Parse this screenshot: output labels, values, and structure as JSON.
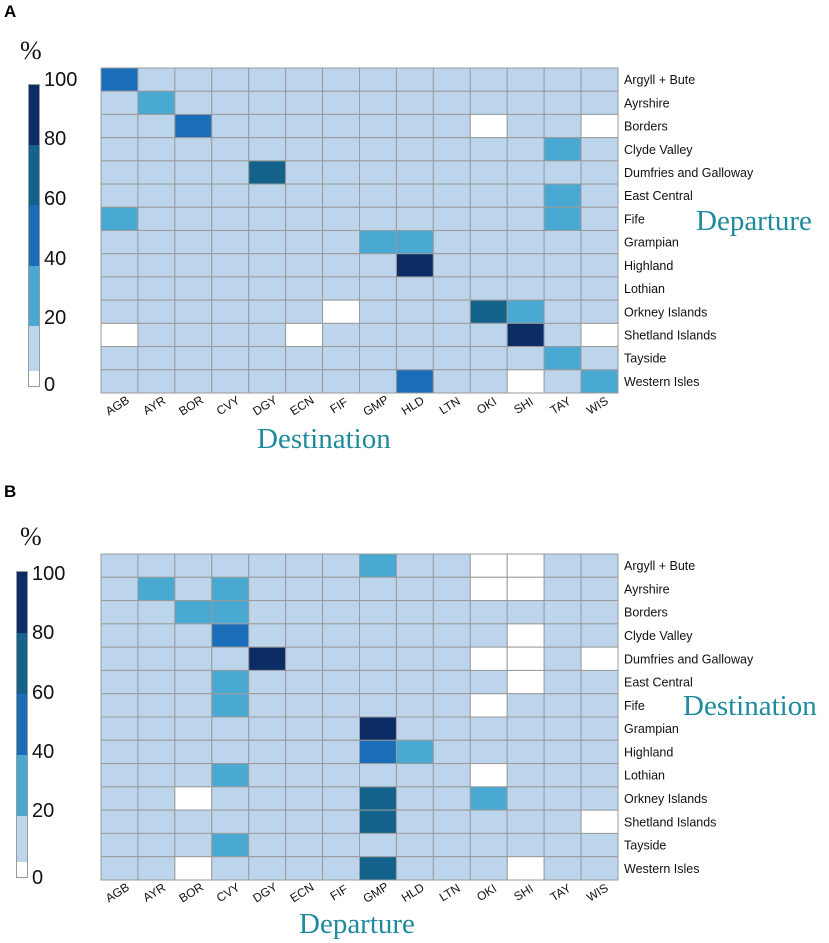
{
  "figure": {
    "panels": [
      "A",
      "B"
    ],
    "colorbar": {
      "unit": "%",
      "ticks": [
        "100",
        "80",
        "60",
        "40",
        "20",
        "0"
      ],
      "colors": [
        "#ffffff",
        "#bcd5ec",
        "#4aa9d2",
        "#1a6db8",
        "#13628c",
        "#0c2c66"
      ]
    }
  },
  "chart_data": [
    {
      "type": "heatmap",
      "panel": "A",
      "title": "",
      "xlabel": "Destination",
      "ylabel": "Departure",
      "x_categories": [
        "AGB",
        "AYR",
        "BOR",
        "CVY",
        "DGY",
        "ECN",
        "FIF",
        "GMP",
        "HLD",
        "LTN",
        "OKI",
        "SHI",
        "TAY",
        "WIS"
      ],
      "y_categories": [
        "Argyll + Bute",
        "Ayrshire",
        "Borders",
        "Clyde Valley",
        "Dumfries and Galloway",
        "East Central",
        "Fife",
        "Grampian",
        "Highland",
        "Lothian",
        "Orkney Islands",
        "Shetland Islands",
        "Tayside",
        "Western Isles"
      ],
      "value_range": [
        0,
        100
      ],
      "values": [
        [
          50,
          10,
          10,
          10,
          10,
          10,
          10,
          10,
          10,
          10,
          10,
          10,
          10,
          10
        ],
        [
          10,
          30,
          10,
          10,
          10,
          10,
          10,
          10,
          10,
          10,
          10,
          10,
          10,
          10
        ],
        [
          10,
          10,
          50,
          10,
          10,
          10,
          10,
          10,
          10,
          10,
          2,
          10,
          10,
          2
        ],
        [
          10,
          10,
          10,
          10,
          10,
          10,
          10,
          10,
          10,
          10,
          10,
          10,
          30,
          10
        ],
        [
          10,
          10,
          10,
          10,
          70,
          10,
          10,
          10,
          10,
          10,
          10,
          10,
          10,
          10
        ],
        [
          10,
          10,
          10,
          10,
          10,
          10,
          10,
          10,
          10,
          10,
          10,
          10,
          30,
          10
        ],
        [
          30,
          10,
          10,
          10,
          10,
          10,
          10,
          10,
          10,
          10,
          10,
          10,
          30,
          10
        ],
        [
          10,
          10,
          10,
          10,
          10,
          10,
          10,
          30,
          30,
          10,
          10,
          10,
          10,
          10
        ],
        [
          10,
          10,
          10,
          10,
          10,
          10,
          10,
          10,
          90,
          10,
          10,
          10,
          10,
          10
        ],
        [
          10,
          10,
          10,
          10,
          10,
          10,
          10,
          10,
          10,
          10,
          10,
          10,
          10,
          10
        ],
        [
          10,
          10,
          10,
          10,
          10,
          10,
          2,
          10,
          10,
          10,
          70,
          30,
          10,
          10
        ],
        [
          2,
          10,
          10,
          10,
          10,
          2,
          10,
          10,
          10,
          10,
          10,
          90,
          10,
          2
        ],
        [
          10,
          10,
          10,
          10,
          10,
          10,
          10,
          10,
          10,
          10,
          10,
          10,
          30,
          10
        ],
        [
          10,
          10,
          10,
          10,
          10,
          10,
          10,
          10,
          50,
          10,
          10,
          2,
          10,
          30
        ]
      ]
    },
    {
      "type": "heatmap",
      "panel": "B",
      "title": "",
      "xlabel": "Departure",
      "ylabel": "Destination",
      "x_categories": [
        "AGB",
        "AYR",
        "BOR",
        "CVY",
        "DGY",
        "ECN",
        "FIF",
        "GMP",
        "HLD",
        "LTN",
        "OKI",
        "SHI",
        "TAY",
        "WIS"
      ],
      "y_categories": [
        "Argyll + Bute",
        "Ayrshire",
        "Borders",
        "Clyde Valley",
        "Dumfries and Galloway",
        "East Central",
        "Fife",
        "Grampian",
        "Highland",
        "Lothian",
        "Orkney Islands",
        "Shetland Islands",
        "Tayside",
        "Western Isles"
      ],
      "value_range": [
        0,
        100
      ],
      "values": [
        [
          10,
          10,
          10,
          10,
          10,
          10,
          10,
          30,
          10,
          10,
          2,
          2,
          10,
          10
        ],
        [
          10,
          30,
          10,
          30,
          10,
          10,
          10,
          10,
          10,
          10,
          2,
          2,
          10,
          10
        ],
        [
          10,
          10,
          30,
          30,
          10,
          10,
          10,
          10,
          10,
          10,
          10,
          10,
          10,
          10
        ],
        [
          10,
          10,
          10,
          50,
          10,
          10,
          10,
          10,
          10,
          10,
          10,
          2,
          10,
          10
        ],
        [
          10,
          10,
          10,
          10,
          90,
          10,
          10,
          10,
          10,
          10,
          2,
          2,
          10,
          2
        ],
        [
          10,
          10,
          10,
          30,
          10,
          10,
          10,
          10,
          10,
          10,
          10,
          2,
          10,
          10
        ],
        [
          10,
          10,
          10,
          30,
          10,
          10,
          10,
          10,
          10,
          10,
          2,
          10,
          10,
          10
        ],
        [
          10,
          10,
          10,
          10,
          10,
          10,
          10,
          90,
          10,
          10,
          10,
          10,
          10,
          10
        ],
        [
          10,
          10,
          10,
          10,
          10,
          10,
          10,
          50,
          30,
          10,
          10,
          10,
          10,
          10
        ],
        [
          10,
          10,
          10,
          30,
          10,
          10,
          10,
          10,
          10,
          10,
          2,
          10,
          10,
          10
        ],
        [
          10,
          10,
          2,
          10,
          10,
          10,
          10,
          70,
          10,
          10,
          30,
          10,
          10,
          10
        ],
        [
          10,
          10,
          10,
          10,
          10,
          10,
          10,
          70,
          10,
          10,
          10,
          10,
          10,
          2
        ],
        [
          10,
          10,
          10,
          30,
          10,
          10,
          10,
          10,
          10,
          10,
          10,
          10,
          10,
          10
        ],
        [
          10,
          10,
          2,
          10,
          10,
          10,
          10,
          70,
          10,
          10,
          10,
          2,
          10,
          10
        ]
      ]
    }
  ]
}
